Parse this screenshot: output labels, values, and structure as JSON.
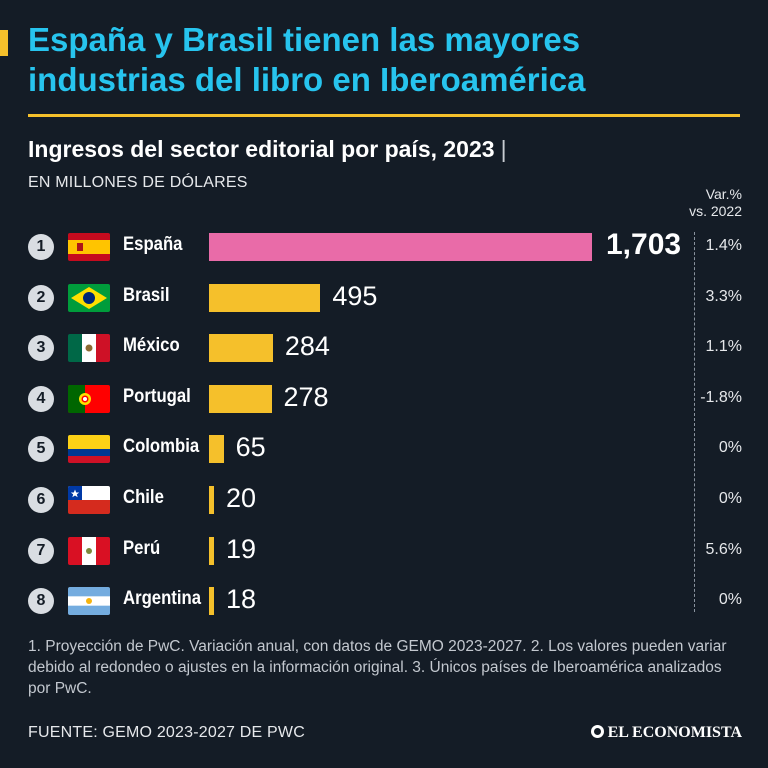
{
  "headline": [
    "España y Brasil tienen las mayores",
    "industrias del libro en Iberoamérica"
  ],
  "subtitle": "Ingresos del sector editorial por país, 2023",
  "subtitle_sep": "|",
  "units": "EN MILLONES DE DÓLARES",
  "var_header": [
    "Var.%",
    "vs. 2022"
  ],
  "chart_data": {
    "type": "bar",
    "orientation": "horizontal",
    "title": "Ingresos del sector editorial por país, 2023",
    "unit": "EN MILLONES DE DÓLARES",
    "categories": [
      "España",
      "Brasil",
      "México",
      "Portugal",
      "Colombia",
      "Chile",
      "Perú",
      "Argentina"
    ],
    "ranks": [
      "1",
      "2",
      "3",
      "4",
      "5",
      "6",
      "7",
      "8"
    ],
    "values": [
      1703,
      495,
      284,
      278,
      65,
      20,
      19,
      18
    ],
    "value_labels": [
      "1,703",
      "495",
      "284",
      "278",
      "65",
      "20",
      "19",
      "18"
    ],
    "variation": [
      "1.4%",
      "3.3%",
      "1.1%",
      "-1.8%",
      "0%",
      "0%",
      "5.6%",
      "0%"
    ],
    "flags": [
      "spain-flag",
      "brazil-flag",
      "mexico-flag",
      "portugal-flag",
      "colombia-flag",
      "chile-flag",
      "peru-flag",
      "argentina-flag"
    ],
    "colors": {
      "highlight": "#e96ba8",
      "bar": "#f5c02b"
    }
  },
  "notes": "1. Proyección de PwC. Variación anual, con datos de GEMO 2023-2027. 2. Los valores pueden variar debido al redondeo o ajustes en la información original. 3. Únicos países de Iberoamérica analizados por PwC.",
  "source": "FUENTE: GEMO 2023-2027 DE PWC",
  "brand": "EL ECONOMISTA"
}
